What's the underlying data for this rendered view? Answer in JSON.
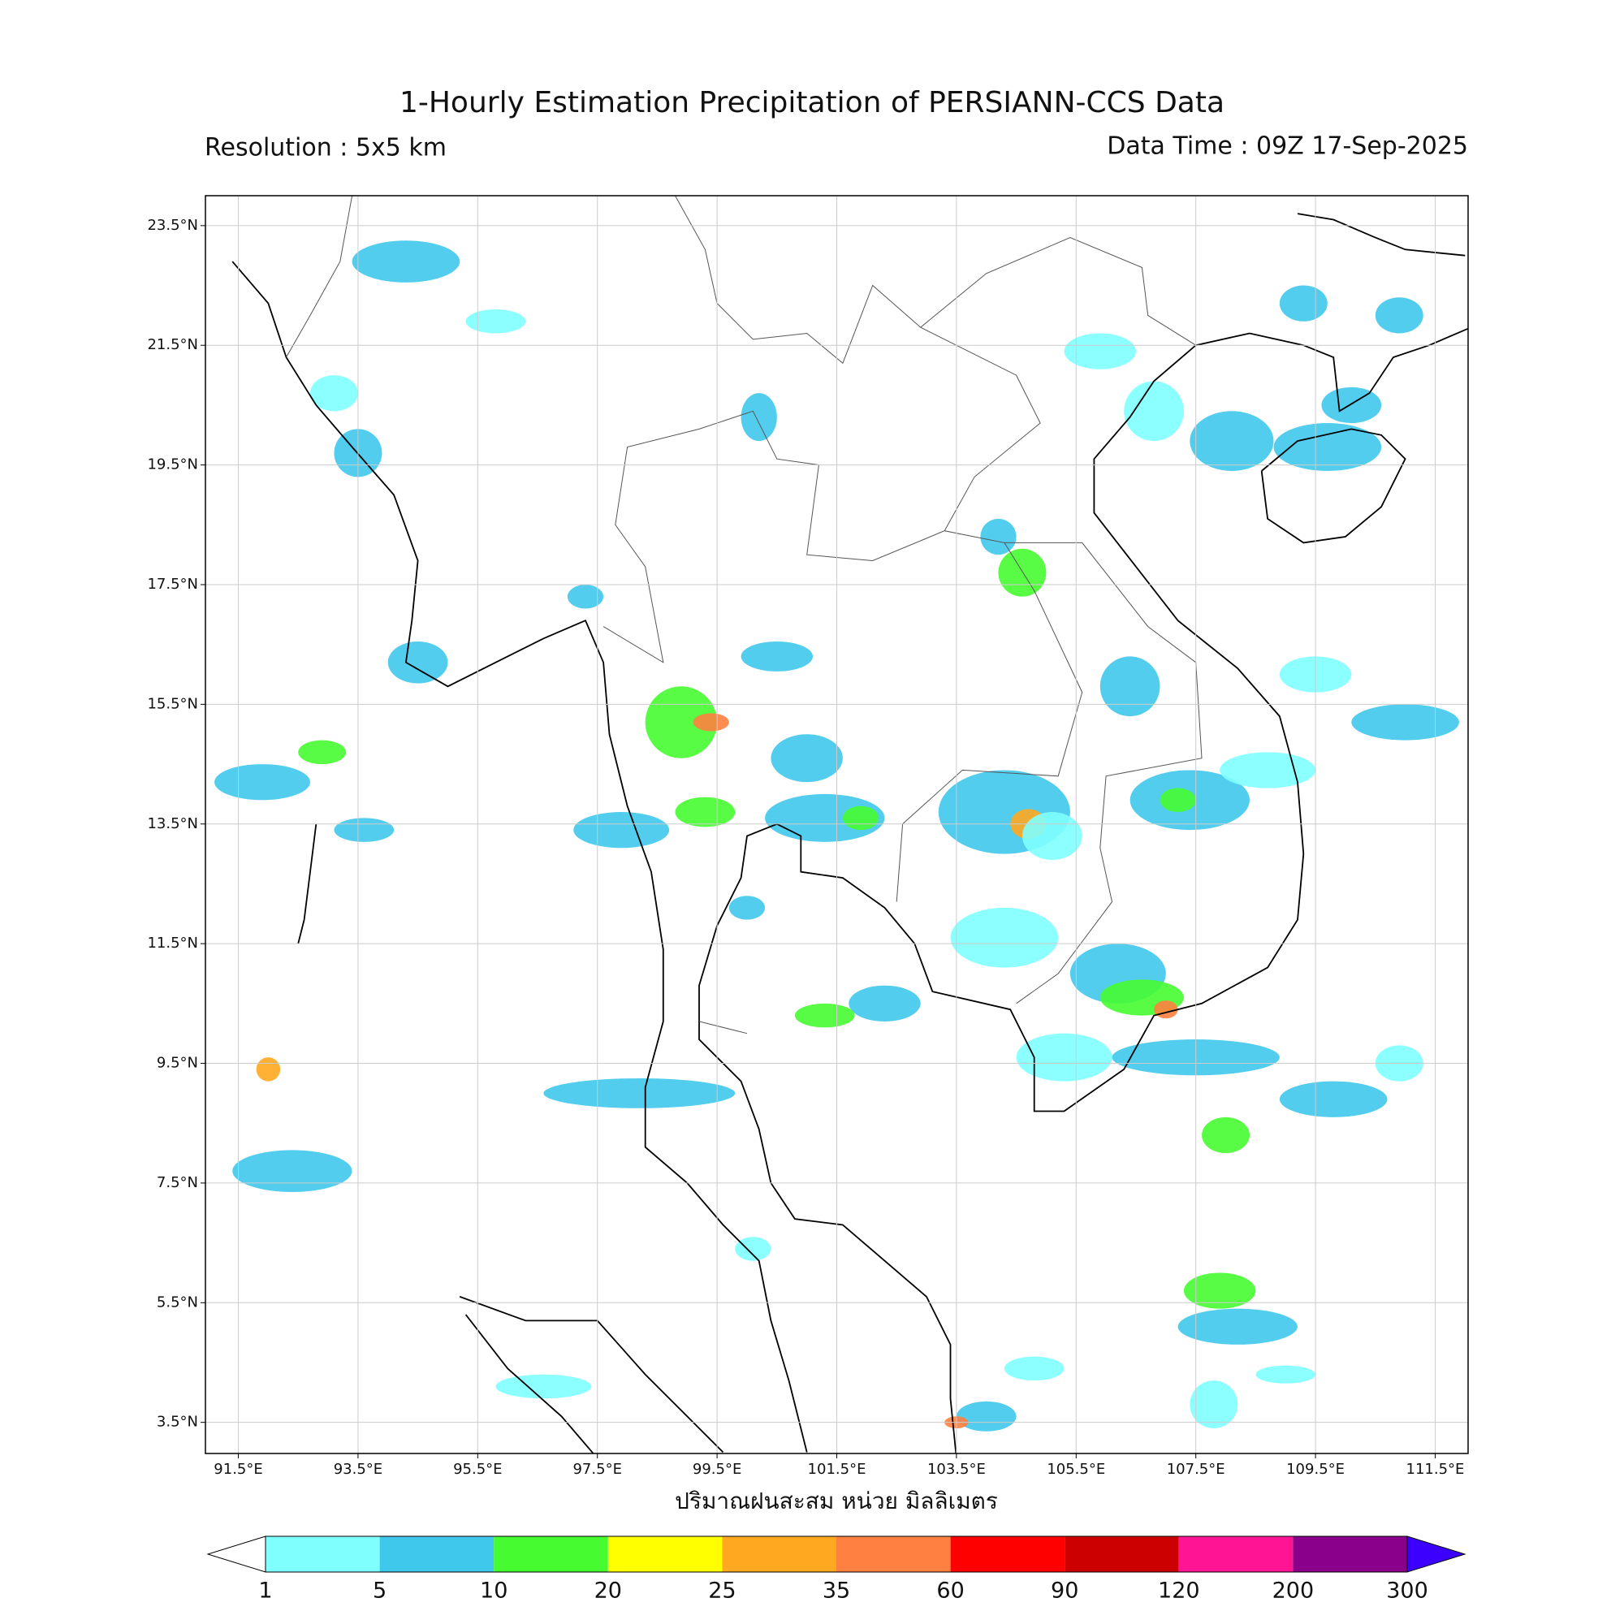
{
  "map": {
    "title": "1-Hourly Estimation Precipitation of PERSIANN-CCS Data",
    "resolution": "Resolution : 5x5 km",
    "data_time": "Data Time : 09Z 17-Sep-2025",
    "x_label": "ปริมาณฝนสะสม หน่วย มิลลิเมตร",
    "xlim": [
      90.95,
      112.05
    ],
    "ylim": [
      2.98,
      24.0
    ],
    "grid": true,
    "xticks": [
      {
        "value": 91.5,
        "label": "91.5°E"
      },
      {
        "value": 93.5,
        "label": "93.5°E"
      },
      {
        "value": 95.5,
        "label": "95.5°E"
      },
      {
        "value": 97.5,
        "label": "97.5°E"
      },
      {
        "value": 99.5,
        "label": "99.5°E"
      },
      {
        "value": 101.5,
        "label": "101.5°E"
      },
      {
        "value": 103.5,
        "label": "103.5°E"
      },
      {
        "value": 105.5,
        "label": "105.5°E"
      },
      {
        "value": 107.5,
        "label": "107.5°E"
      },
      {
        "value": 109.5,
        "label": "109.5°E"
      },
      {
        "value": 111.5,
        "label": "111.5°E"
      }
    ],
    "yticks": [
      {
        "value": 3.5,
        "label": "3.5°N"
      },
      {
        "value": 5.5,
        "label": "5.5°N"
      },
      {
        "value": 7.5,
        "label": "7.5°N"
      },
      {
        "value": 9.5,
        "label": "9.5°N"
      },
      {
        "value": 11.5,
        "label": "11.5°N"
      },
      {
        "value": 13.5,
        "label": "13.5°N"
      },
      {
        "value": 15.5,
        "label": "15.5°N"
      },
      {
        "value": 17.5,
        "label": "17.5°N"
      },
      {
        "value": 19.5,
        "label": "19.5°N"
      },
      {
        "value": 21.5,
        "label": "21.5°N"
      },
      {
        "value": 23.5,
        "label": "23.5°N"
      }
    ],
    "colorbar": {
      "levels": [
        1,
        5,
        10,
        20,
        25,
        35,
        60,
        90,
        120,
        200,
        300
      ],
      "colors": [
        "#80ffff",
        "#40c8ec",
        "#46fc30",
        "#ffff00",
        "#ffa820",
        "#ff8040",
        "#ff0000",
        "#cc0000",
        "#ff1493",
        "#8b008b"
      ],
      "under_color": "#ffffff",
      "over_color": "#3c00ff"
    }
  }
}
